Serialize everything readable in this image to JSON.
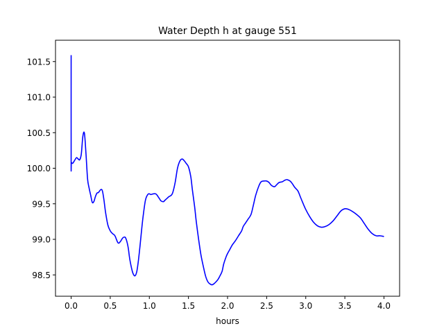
{
  "chart_data": {
    "type": "line",
    "title": "Water Depth h at gauge 551",
    "xlabel": "hours",
    "ylabel": "",
    "xlim": [
      -0.2,
      4.2
    ],
    "ylim": [
      98.2,
      101.8
    ],
    "xticks": [
      0.0,
      0.5,
      1.0,
      1.5,
      2.0,
      2.5,
      3.0,
      3.5,
      4.0
    ],
    "xtick_labels": [
      "0.0",
      "0.5",
      "1.0",
      "1.5",
      "2.0",
      "2.5",
      "3.0",
      "3.5",
      "4.0"
    ],
    "yticks": [
      98.5,
      99.0,
      99.5,
      100.0,
      100.5,
      101.0,
      101.5
    ],
    "ytick_labels": [
      "98.5",
      "99.0",
      "99.5",
      "100.0",
      "100.5",
      "101.0",
      "101.5"
    ],
    "grid": false,
    "series": [
      {
        "color": "#0000ff",
        "x": [
          0.0,
          0.0,
          0.003,
          0.02,
          0.05,
          0.07,
          0.09,
          0.11,
          0.13,
          0.15,
          0.17,
          0.19,
          0.21,
          0.23,
          0.25,
          0.27,
          0.29,
          0.31,
          0.33,
          0.35,
          0.38,
          0.4,
          0.42,
          0.44,
          0.47,
          0.5,
          0.53,
          0.56,
          0.6,
          0.63,
          0.66,
          0.69,
          0.71,
          0.73,
          0.75,
          0.78,
          0.8,
          0.82,
          0.84,
          0.86,
          0.88,
          0.9,
          0.92,
          0.95,
          0.98,
          1.0,
          1.02,
          1.05,
          1.08,
          1.1,
          1.13,
          1.15,
          1.18,
          1.2,
          1.23,
          1.25,
          1.28,
          1.3,
          1.33,
          1.36,
          1.39,
          1.42,
          1.45,
          1.47,
          1.5,
          1.53,
          1.55,
          1.58,
          1.6,
          1.63,
          1.66,
          1.69,
          1.72,
          1.75,
          1.78,
          1.8,
          1.82,
          1.85,
          1.88,
          1.9,
          1.93,
          1.95,
          1.98,
          2.0,
          2.03,
          2.06,
          2.1,
          2.14,
          2.18,
          2.2,
          2.23,
          2.26,
          2.3,
          2.33,
          2.36,
          2.4,
          2.43,
          2.46,
          2.5,
          2.53,
          2.56,
          2.6,
          2.63,
          2.66,
          2.7,
          2.73,
          2.76,
          2.8,
          2.83,
          2.86,
          2.9,
          2.93,
          2.96,
          3.0,
          3.05,
          3.1,
          3.15,
          3.2,
          3.25,
          3.3,
          3.35,
          3.4,
          3.45,
          3.5,
          3.55,
          3.6,
          3.65,
          3.7,
          3.75,
          3.8,
          3.85,
          3.9,
          3.95,
          4.0
        ],
        "y": [
          101.59,
          100.07,
          100.08,
          100.07,
          100.12,
          100.15,
          100.13,
          100.12,
          100.2,
          100.45,
          100.49,
          100.2,
          99.85,
          99.72,
          99.62,
          99.52,
          99.53,
          99.6,
          99.65,
          99.66,
          99.7,
          99.68,
          99.55,
          99.38,
          99.2,
          99.12,
          99.08,
          99.05,
          98.95,
          98.97,
          99.02,
          99.03,
          98.98,
          98.88,
          98.72,
          98.56,
          98.5,
          98.49,
          98.55,
          98.7,
          98.9,
          99.12,
          99.32,
          99.55,
          99.63,
          99.64,
          99.63,
          99.64,
          99.64,
          99.62,
          99.57,
          99.54,
          99.53,
          99.55,
          99.58,
          99.6,
          99.62,
          99.66,
          99.8,
          100.0,
          100.1,
          100.13,
          100.1,
          100.07,
          100.02,
          99.88,
          99.7,
          99.45,
          99.25,
          99.0,
          98.78,
          98.62,
          98.48,
          98.4,
          98.37,
          98.36,
          98.37,
          98.4,
          98.44,
          98.48,
          98.55,
          98.65,
          98.75,
          98.8,
          98.86,
          98.92,
          98.98,
          99.05,
          99.12,
          99.18,
          99.23,
          99.28,
          99.35,
          99.48,
          99.62,
          99.75,
          99.81,
          99.82,
          99.82,
          99.8,
          99.76,
          99.74,
          99.77,
          99.8,
          99.81,
          99.83,
          99.84,
          99.82,
          99.78,
          99.73,
          99.68,
          99.6,
          99.52,
          99.42,
          99.32,
          99.24,
          99.19,
          99.17,
          99.18,
          99.21,
          99.26,
          99.33,
          99.4,
          99.43,
          99.42,
          99.39,
          99.35,
          99.3,
          99.22,
          99.14,
          99.08,
          99.05,
          99.05,
          99.04
        ]
      }
    ]
  }
}
